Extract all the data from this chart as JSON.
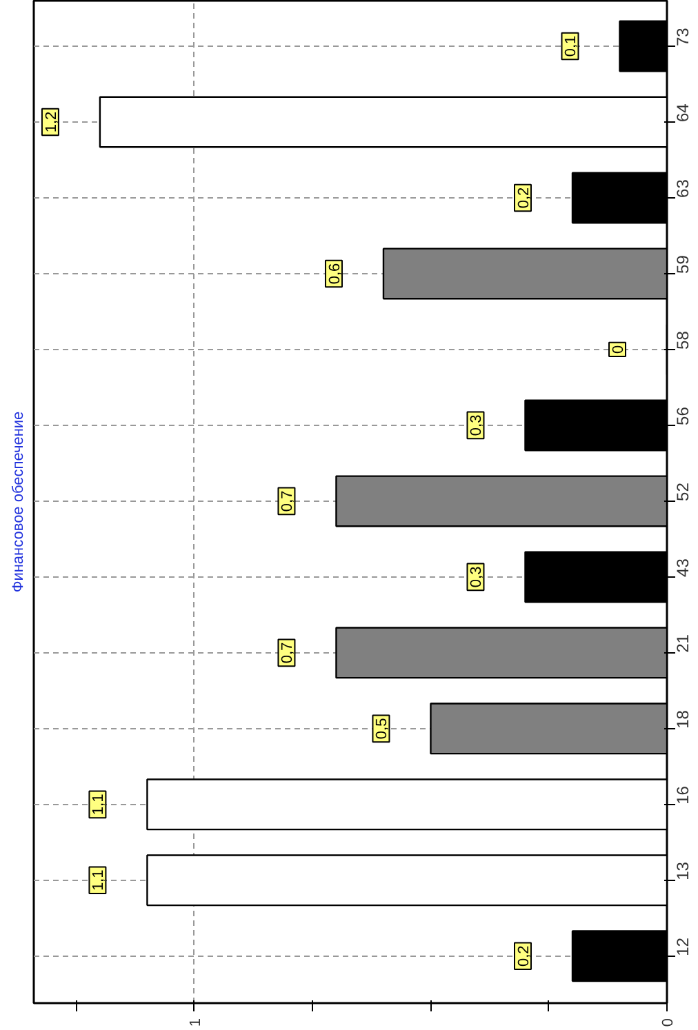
{
  "chart_data": {
    "type": "bar",
    "orientation": "horizontal",
    "title": "Финансовое обеспечение",
    "categories": [
      "73",
      "64",
      "63",
      "59",
      "58",
      "56",
      "52",
      "43",
      "21",
      "18",
      "16",
      "13",
      "12"
    ],
    "values": [
      0.1,
      1.2,
      0.2,
      0.6,
      0,
      0.3,
      0.7,
      0.3,
      0.7,
      0.5,
      1.1,
      1.1,
      0.2
    ],
    "colors": [
      "#000000",
      "#ffffff",
      "#000000",
      "#808080",
      "#000000",
      "#000000",
      "#808080",
      "#000000",
      "#808080",
      "#808080",
      "#ffffff",
      "#ffffff",
      "#000000"
    ],
    "value_labels": [
      "0,1",
      "1,2",
      "0,2",
      "0,6",
      "0",
      "0,3",
      "0,7",
      "0,3",
      "0,7",
      "0,5",
      "1,1",
      "1,1",
      "0,2"
    ],
    "xlim": [
      1.34,
      0
    ],
    "xticks": [
      0,
      {
        "value": 0.25,
        "label": null
      },
      {
        "value": 0.5,
        "label": null
      },
      {
        "value": 0.75,
        "label": null
      },
      1,
      {
        "value": 1.25,
        "label": null
      }
    ],
    "grid": true
  }
}
